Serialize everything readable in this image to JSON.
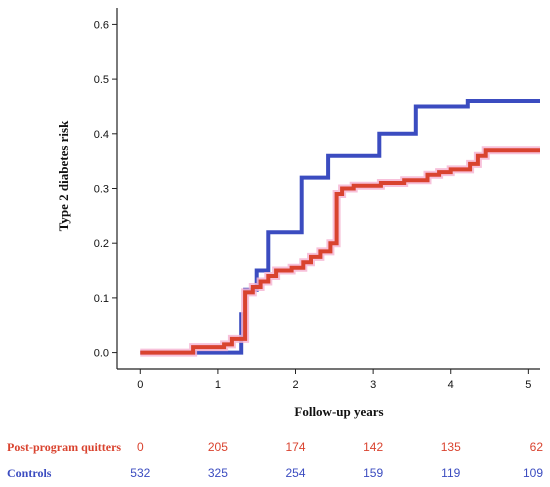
{
  "chart_data": {
    "type": "line",
    "title": "",
    "xlabel": "Follow-up years",
    "ylabel": "Type 2 diabetes risk",
    "xlim": [
      -0.3,
      5.15
    ],
    "ylim": [
      -0.03,
      0.63
    ],
    "x_ticks": [
      0,
      1,
      2,
      3,
      4,
      5
    ],
    "x_tick_labels": [
      "0",
      "1",
      "2",
      "3",
      "4",
      "5"
    ],
    "y_ticks": [
      0.0,
      0.1,
      0.2,
      0.3,
      0.4,
      0.5,
      0.6
    ],
    "y_tick_labels": [
      "0.0",
      "0.1",
      "0.2",
      "0.3",
      "0.4",
      "0.5",
      "0.6"
    ],
    "grid": false,
    "series": [
      {
        "name": "Controls",
        "color": "#3b4cc0",
        "step_points": [
          [
            0,
            0
          ],
          [
            1.3,
            0
          ],
          [
            1.3,
            0.07
          ],
          [
            1.35,
            0.07
          ],
          [
            1.35,
            0.115
          ],
          [
            1.5,
            0.115
          ],
          [
            1.5,
            0.15
          ],
          [
            1.65,
            0.15
          ],
          [
            1.65,
            0.22
          ],
          [
            2.08,
            0.22
          ],
          [
            2.08,
            0.32
          ],
          [
            2.42,
            0.32
          ],
          [
            2.42,
            0.36
          ],
          [
            3.08,
            0.36
          ],
          [
            3.08,
            0.4
          ],
          [
            3.55,
            0.4
          ],
          [
            3.55,
            0.45
          ],
          [
            4.22,
            0.45
          ],
          [
            4.22,
            0.46
          ],
          [
            5.15,
            0.46
          ]
        ]
      },
      {
        "name": "Post-program quitters",
        "color": "#d9432f",
        "step_points": [
          [
            0,
            0
          ],
          [
            0.68,
            0
          ],
          [
            0.68,
            0.01
          ],
          [
            1.08,
            0.01
          ],
          [
            1.08,
            0.015
          ],
          [
            1.18,
            0.015
          ],
          [
            1.18,
            0.025
          ],
          [
            1.35,
            0.025
          ],
          [
            1.35,
            0.11
          ],
          [
            1.45,
            0.11
          ],
          [
            1.45,
            0.12
          ],
          [
            1.55,
            0.12
          ],
          [
            1.55,
            0.13
          ],
          [
            1.65,
            0.13
          ],
          [
            1.65,
            0.14
          ],
          [
            1.75,
            0.14
          ],
          [
            1.75,
            0.15
          ],
          [
            1.95,
            0.15
          ],
          [
            1.95,
            0.155
          ],
          [
            2.1,
            0.155
          ],
          [
            2.1,
            0.165
          ],
          [
            2.2,
            0.165
          ],
          [
            2.2,
            0.175
          ],
          [
            2.32,
            0.175
          ],
          [
            2.32,
            0.185
          ],
          [
            2.45,
            0.185
          ],
          [
            2.45,
            0.2
          ],
          [
            2.53,
            0.2
          ],
          [
            2.53,
            0.29
          ],
          [
            2.6,
            0.29
          ],
          [
            2.6,
            0.3
          ],
          [
            2.75,
            0.3
          ],
          [
            2.75,
            0.305
          ],
          [
            3.1,
            0.305
          ],
          [
            3.1,
            0.31
          ],
          [
            3.4,
            0.31
          ],
          [
            3.4,
            0.315
          ],
          [
            3.7,
            0.315
          ],
          [
            3.7,
            0.325
          ],
          [
            3.85,
            0.325
          ],
          [
            3.85,
            0.33
          ],
          [
            4.0,
            0.33
          ],
          [
            4.0,
            0.335
          ],
          [
            4.25,
            0.335
          ],
          [
            4.25,
            0.345
          ],
          [
            4.35,
            0.345
          ],
          [
            4.35,
            0.36
          ],
          [
            4.45,
            0.36
          ],
          [
            4.45,
            0.37
          ],
          [
            5.15,
            0.37
          ]
        ]
      }
    ]
  },
  "risk_table": {
    "x": [
      0,
      1,
      2,
      3,
      4,
      5
    ],
    "rows": [
      {
        "label": "Post-program quitters",
        "color": "#d9432f",
        "values": [
          "0",
          "205",
          "174",
          "142",
          "135",
          "62"
        ]
      },
      {
        "label": "Controls",
        "color": "#3b4cc0",
        "values": [
          "532",
          "325",
          "254",
          "159",
          "119",
          "109"
        ]
      }
    ]
  }
}
